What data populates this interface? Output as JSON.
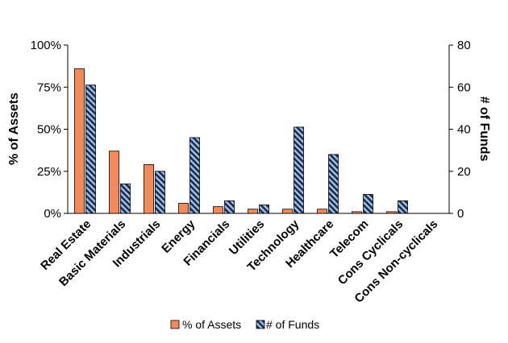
{
  "chart_data": {
    "type": "bar",
    "categories": [
      "Real Estate",
      "Basic Materials",
      "Industrials",
      "Energy",
      "Financials",
      "Utilities",
      "Technology",
      "Healthcare",
      "Telecom",
      "Cons Cyclicals",
      "Cons Non-cyclicals"
    ],
    "series": [
      {
        "name": "% of Assets",
        "axis": "left",
        "values": [
          86,
          37,
          29,
          6,
          4,
          2.5,
          2.5,
          2.5,
          1,
          1,
          0
        ]
      },
      {
        "name": "# of Funds",
        "axis": "right",
        "values": [
          61,
          14,
          20,
          36,
          6,
          4,
          41,
          28,
          9,
          6,
          0
        ]
      }
    ],
    "ylabel": "% of Assets",
    "y2label": "# of Funds",
    "ylim": [
      0,
      100
    ],
    "y2lim": [
      0,
      80
    ],
    "yticks": [
      "0%",
      "25%",
      "50%",
      "75%",
      "100%"
    ],
    "y2ticks": [
      "0",
      "20",
      "40",
      "60",
      "80"
    ],
    "grid": false,
    "legend_position": "bottom",
    "colors": {
      "assets": "#F28A5A",
      "funds_base": "#1E2A4A",
      "funds_stripe": "#9EC4EE",
      "outline": "#000000"
    }
  }
}
